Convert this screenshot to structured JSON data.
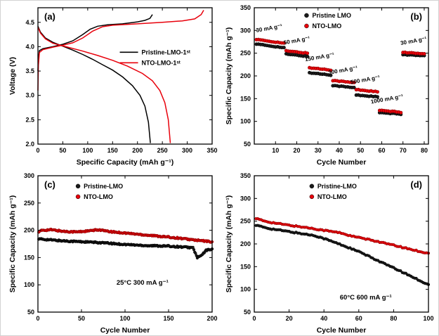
{
  "figure": {
    "description": "Four-panel electrochemical performance figure",
    "background": "#ffffff",
    "colors": {
      "pristine": "#000000",
      "nto": "#e8000b"
    }
  },
  "chart_data": [
    {
      "id": "a",
      "type": "line",
      "panel_label": "(a)",
      "label_pos": "tl",
      "xlabel": "Specific Capacity (mAh g⁻¹)",
      "ylabel": "Voltage (V)",
      "xlim": [
        0,
        350
      ],
      "ylim": [
        2.0,
        4.8
      ],
      "xticks": [
        0,
        50,
        100,
        150,
        200,
        250,
        300,
        350
      ],
      "yticks": [
        2.0,
        2.5,
        3.0,
        3.5,
        4.0,
        4.5
      ],
      "ydecimals": 1,
      "grid": false,
      "legend": {
        "marker": "line",
        "fx": 0.47,
        "fy": 0.28,
        "entries": [
          {
            "label": "Pristine-LMO-1ˢᵗ",
            "color": "#000000"
          },
          {
            "label": "NTO-LMO-1ˢᵗ",
            "color": "#e8000b"
          }
        ]
      },
      "series": [
        {
          "name": "Pristine-LMO charge",
          "color": "#000000",
          "mode": "line",
          "points": [
            [
              0,
              3.5
            ],
            [
              1,
              3.78
            ],
            [
              3,
              3.92
            ],
            [
              10,
              3.96
            ],
            [
              30,
              4.0
            ],
            [
              50,
              4.05
            ],
            [
              70,
              4.12
            ],
            [
              90,
              4.25
            ],
            [
              105,
              4.36
            ],
            [
              120,
              4.42
            ],
            [
              140,
              4.45
            ],
            [
              170,
              4.47
            ],
            [
              200,
              4.51
            ],
            [
              215,
              4.54
            ],
            [
              225,
              4.58
            ],
            [
              230,
              4.66
            ]
          ]
        },
        {
          "name": "Pristine-LMO discharge",
          "color": "#000000",
          "mode": "line",
          "points": [
            [
              0,
              4.42
            ],
            [
              5,
              4.3
            ],
            [
              15,
              4.18
            ],
            [
              30,
              4.09
            ],
            [
              50,
              4.01
            ],
            [
              70,
              3.93
            ],
            [
              90,
              3.84
            ],
            [
              110,
              3.74
            ],
            [
              130,
              3.63
            ],
            [
              150,
              3.52
            ],
            [
              170,
              3.38
            ],
            [
              190,
              3.2
            ],
            [
              205,
              3.0
            ],
            [
              215,
              2.78
            ],
            [
              222,
              2.45
            ],
            [
              226,
              2.02
            ]
          ]
        },
        {
          "name": "NTO-LMO charge",
          "color": "#e8000b",
          "mode": "line",
          "points": [
            [
              0,
              3.1
            ],
            [
              1,
              3.62
            ],
            [
              3,
              3.88
            ],
            [
              10,
              3.94
            ],
            [
              30,
              3.99
            ],
            [
              50,
              4.03
            ],
            [
              70,
              4.08
            ],
            [
              90,
              4.18
            ],
            [
              110,
              4.32
            ],
            [
              130,
              4.41
            ],
            [
              150,
              4.44
            ],
            [
              200,
              4.47
            ],
            [
              250,
              4.5
            ],
            [
              290,
              4.53
            ],
            [
              315,
              4.57
            ],
            [
              328,
              4.66
            ],
            [
              333,
              4.75
            ]
          ]
        },
        {
          "name": "NTO-LMO discharge",
          "color": "#e8000b",
          "mode": "line",
          "points": [
            [
              0,
              4.4
            ],
            [
              5,
              4.28
            ],
            [
              15,
              4.16
            ],
            [
              30,
              4.07
            ],
            [
              60,
              3.99
            ],
            [
              90,
              3.91
            ],
            [
              120,
              3.82
            ],
            [
              150,
              3.72
            ],
            [
              180,
              3.6
            ],
            [
              210,
              3.45
            ],
            [
              230,
              3.3
            ],
            [
              245,
              3.1
            ],
            [
              255,
              2.85
            ],
            [
              262,
              2.5
            ],
            [
              266,
              2.02
            ]
          ]
        }
      ]
    },
    {
      "id": "b",
      "type": "scatter",
      "panel_label": "(b)",
      "label_pos": "tr",
      "xlabel": "Cycle Number",
      "ylabel": "Specific Capacity (mAh g⁻¹)",
      "xlim": [
        0,
        82
      ],
      "ylim": [
        50,
        350
      ],
      "xticks": [
        10,
        20,
        30,
        40,
        50,
        60,
        70,
        80
      ],
      "yticks": [
        50,
        100,
        150,
        200,
        250,
        300,
        350
      ],
      "grid": false,
      "legend": {
        "marker": "dot",
        "fx": 0.28,
        "fy": 0.01,
        "entries": [
          {
            "label": "Pristine LMO",
            "color": "#1a1a1a"
          },
          {
            "label": "NTO-LMO",
            "color": "#e8000b"
          }
        ]
      },
      "annotations": [
        {
          "text": "30 mA g⁻¹",
          "x": 1,
          "y": 296,
          "rotate": -10
        },
        {
          "text": "50 mA g⁻¹",
          "x": 14,
          "y": 269,
          "rotate": -10
        },
        {
          "text": "150 mA g⁻¹",
          "x": 24,
          "y": 232,
          "rotate": -10
        },
        {
          "text": "300 mA g⁻¹",
          "x": 35,
          "y": 203,
          "rotate": -10
        },
        {
          "text": "500 mA g⁻¹",
          "x": 45.5,
          "y": 182,
          "rotate": -10
        },
        {
          "text": "1000 mA g⁻¹",
          "x": 55,
          "y": 139,
          "rotate": -10
        },
        {
          "text": "30 mA g⁻¹",
          "x": 69,
          "y": 268,
          "rotate": -10
        }
      ],
      "series": [
        {
          "name": "Pristine LMO",
          "color": "#1a1a1a",
          "edge": "#000000",
          "mode": "rate-steps",
          "segments": [
            {
              "rate": "30 mA g⁻¹",
              "cycles": [
                1,
                14
              ],
              "from": 270,
              "to": 262
            },
            {
              "rate": "50 mA g⁻¹",
              "cycles": [
                15,
                25
              ],
              "from": 248,
              "to": 243
            },
            {
              "rate": "150 mA g⁻¹",
              "cycles": [
                26,
                36
              ],
              "from": 207,
              "to": 202
            },
            {
              "rate": "300 mA g⁻¹",
              "cycles": [
                37,
                47
              ],
              "from": 179,
              "to": 174
            },
            {
              "rate": "500 mA g⁻¹",
              "cycles": [
                48,
                58
              ],
              "from": 158,
              "to": 154
            },
            {
              "rate": "1000 mA g⁻¹",
              "cycles": [
                59,
                69
              ],
              "from": 119,
              "to": 116
            },
            {
              "rate": "30 mA g⁻¹",
              "cycles": [
                70,
                80
              ],
              "from": 247,
              "to": 244
            }
          ]
        },
        {
          "name": "NTO-LMO",
          "color": "#e8000b",
          "edge": "#8b0000",
          "mode": "rate-steps",
          "segments": [
            {
              "rate": "30 mA g⁻¹",
              "cycles": [
                1,
                14
              ],
              "from": 280,
              "to": 272
            },
            {
              "rate": "50 mA g⁻¹",
              "cycles": [
                15,
                25
              ],
              "from": 255,
              "to": 250
            },
            {
              "rate": "150 mA g⁻¹",
              "cycles": [
                26,
                36
              ],
              "from": 218,
              "to": 213
            },
            {
              "rate": "300 mA g⁻¹",
              "cycles": [
                37,
                47
              ],
              "from": 190,
              "to": 185
            },
            {
              "rate": "500 mA g⁻¹",
              "cycles": [
                48,
                58
              ],
              "from": 170,
              "to": 165
            },
            {
              "rate": "1000 mA g⁻¹",
              "cycles": [
                59,
                69
              ],
              "from": 124,
              "to": 120
            },
            {
              "rate": "30 mA g⁻¹",
              "cycles": [
                70,
                80
              ],
              "from": 252,
              "to": 248
            }
          ]
        }
      ]
    },
    {
      "id": "c",
      "type": "scatter",
      "panel_label": "(c)",
      "label_pos": "tl",
      "xlabel": "Cycle Number",
      "ylabel": "Specific Capacity (mAh g⁻¹)",
      "xlim": [
        0,
        200
      ],
      "ylim": [
        50,
        300
      ],
      "xticks": [
        0,
        50,
        100,
        150,
        200
      ],
      "yticks": [
        50,
        100,
        150,
        200,
        250,
        300
      ],
      "grid": false,
      "legend": {
        "marker": "dot",
        "fx": 0.21,
        "fy": 0.03,
        "entries": [
          {
            "label": "Pristine-LMO",
            "color": "#1a1a1a"
          },
          {
            "label": "NTO-LMO",
            "color": "#e8000b"
          }
        ]
      },
      "annotations": [
        {
          "text": "25°C 300 mA g⁻¹",
          "x": 120,
          "y": 100,
          "rotate": 0,
          "size": 9.5,
          "anchor": "middle"
        }
      ],
      "series": [
        {
          "name": "Pristine-LMO",
          "color": "#1a1a1a",
          "edge": "#000000",
          "mode": "scatter-dense",
          "points": [
            [
              1,
              184
            ],
            [
              10,
              183
            ],
            [
              25,
              181
            ],
            [
              50,
              179
            ],
            [
              75,
              177
            ],
            [
              100,
              174
            ],
            [
              125,
              172
            ],
            [
              150,
              171
            ],
            [
              170,
              169
            ],
            [
              178,
              168
            ],
            [
              183,
              150
            ],
            [
              188,
              154
            ],
            [
              193,
              163
            ],
            [
              200,
              166
            ]
          ]
        },
        {
          "name": "NTO-LMO",
          "color": "#e8000b",
          "edge": "#8b0000",
          "mode": "scatter-dense",
          "points": [
            [
              1,
              197
            ],
            [
              5,
              200
            ],
            [
              15,
              201
            ],
            [
              30,
              198
            ],
            [
              45,
              197
            ],
            [
              60,
              199
            ],
            [
              70,
              201
            ],
            [
              80,
              198
            ],
            [
              100,
              195
            ],
            [
              120,
              192
            ],
            [
              140,
              189
            ],
            [
              160,
              186
            ],
            [
              180,
              182
            ],
            [
              200,
              179
            ]
          ]
        }
      ]
    },
    {
      "id": "d",
      "type": "scatter",
      "panel_label": "(d)",
      "label_pos": "tr",
      "xlabel": "Cycle Number",
      "ylabel": "Specific Capacity (mAh g⁻¹)",
      "xlim": [
        0,
        100
      ],
      "ylim": [
        50,
        350
      ],
      "xticks": [
        0,
        20,
        40,
        60,
        80,
        100
      ],
      "yticks": [
        50,
        100,
        150,
        200,
        250,
        300,
        350
      ],
      "grid": false,
      "legend": {
        "marker": "dot",
        "fx": 0.31,
        "fy": 0.03,
        "entries": [
          {
            "label": "Pristine-LMO",
            "color": "#1a1a1a"
          },
          {
            "label": "NTO-LMO",
            "color": "#e8000b"
          }
        ]
      },
      "annotations": [
        {
          "text": "60°C 600 mA g⁻¹",
          "x": 64,
          "y": 78,
          "rotate": 0,
          "size": 9.5,
          "anchor": "middle"
        }
      ],
      "series": [
        {
          "name": "Pristine-LMO",
          "color": "#1a1a1a",
          "edge": "#000000",
          "mode": "scatter-dense",
          "points": [
            [
              1,
              241
            ],
            [
              5,
              237
            ],
            [
              10,
              233
            ],
            [
              20,
              227
            ],
            [
              30,
              221
            ],
            [
              35,
              218
            ],
            [
              40,
              212
            ],
            [
              50,
              198
            ],
            [
              60,
              183
            ],
            [
              70,
              165
            ],
            [
              80,
              147
            ],
            [
              90,
              129
            ],
            [
              100,
              110
            ]
          ]
        },
        {
          "name": "NTO-LMO",
          "color": "#e8000b",
          "edge": "#8b0000",
          "mode": "scatter-dense",
          "points": [
            [
              1,
              256
            ],
            [
              5,
              251
            ],
            [
              10,
              247
            ],
            [
              20,
              241
            ],
            [
              30,
              236
            ],
            [
              40,
              230
            ],
            [
              50,
              224
            ],
            [
              55,
              218
            ],
            [
              60,
              214
            ],
            [
              70,
              206
            ],
            [
              80,
              197
            ],
            [
              90,
              188
            ],
            [
              100,
              179
            ]
          ]
        }
      ]
    }
  ]
}
